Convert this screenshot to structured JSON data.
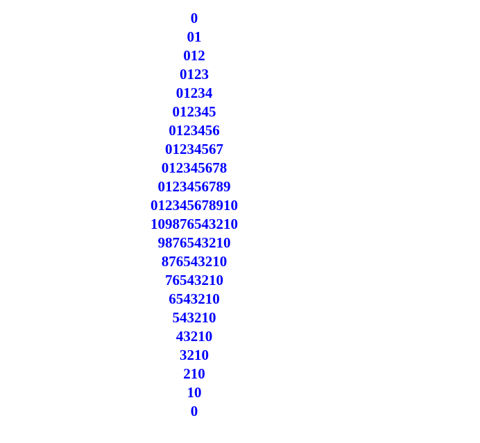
{
  "text_color": "#0000ff",
  "lines": [
    "0",
    "01",
    "012",
    "0123",
    "01234",
    "012345",
    "0123456",
    "01234567",
    "012345678",
    "0123456789",
    "012345678910",
    "109876543210",
    "9876543210",
    "876543210",
    "76543210",
    "6543210",
    "543210",
    "43210",
    "3210",
    "210",
    "10",
    "0"
  ]
}
